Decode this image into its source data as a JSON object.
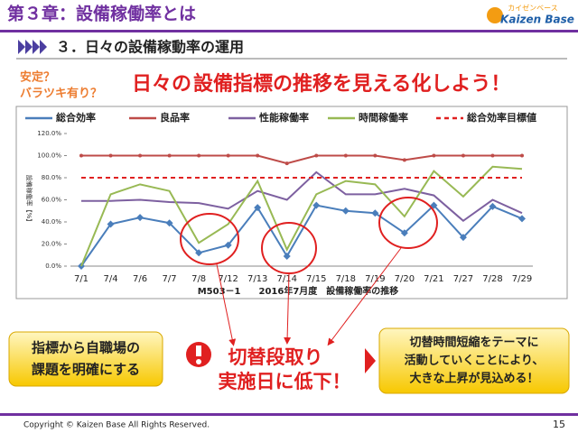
{
  "slide": {
    "title": "第３章：設備稼働率とは",
    "logo_kana": "カイゼンベース",
    "logo": "Kaizen Base",
    "section": "３．日々の設備稼動率の運用",
    "question_lines": [
      "安定？",
      "バラツキ有り？"
    ],
    "headline_parts": [
      "日々の",
      "設備指標の推移を見える化しよう！"
    ],
    "left_box_lines": [
      "指標から自職場の",
      "課題を明確にする"
    ],
    "alert_lines": [
      "切替段取り",
      "実施日に低下！"
    ],
    "right_box_lines": [
      "切替時間短縮をテーマに",
      "活動していくことにより、",
      "大きな上昇が見込める！"
    ],
    "copyright": "Copyright ©  Kaizen Base  All Rights Reserved.",
    "page_number": "15"
  },
  "chart_data": {
    "type": "line",
    "x_title": "M503－1　　2016年7月度　設備稼働率の推移",
    "y_title": "設備稼働率【%】",
    "categories": [
      "7/1",
      "7/4",
      "7/6",
      "7/7",
      "7/8",
      "7/12",
      "7/13",
      "7/14",
      "7/15",
      "7/18",
      "7/19",
      "7/20",
      "7/21",
      "7/27",
      "7/28",
      "7/29"
    ],
    "ylim": [
      0,
      120
    ],
    "yticks": [
      {
        "value": 0,
        "label": "0.0%"
      },
      {
        "value": 20,
        "label": "20.0%"
      },
      {
        "value": 40,
        "label": "40.0%"
      },
      {
        "value": 60,
        "label": "60.0%"
      },
      {
        "value": 80,
        "label": "80.0%"
      },
      {
        "value": 100,
        "label": "100.0%"
      },
      {
        "value": 120,
        "label": "120.0%"
      }
    ],
    "series": [
      {
        "name": "総合効率",
        "color": "#4a7ebb",
        "marker": "diamond",
        "values": [
          0,
          38,
          44,
          39,
          12,
          19,
          53,
          9,
          55,
          50,
          48,
          30,
          55,
          26,
          54,
          43
        ]
      },
      {
        "name": "良品率",
        "color": "#be4b48",
        "marker": "circle",
        "values": [
          100,
          100,
          100,
          100,
          100,
          100,
          100,
          93,
          100,
          100,
          100,
          96,
          100,
          100,
          100,
          100
        ]
      },
      {
        "name": "性能稼働率",
        "color": "#7d60a0",
        "values": [
          59,
          59,
          60,
          58,
          57,
          52,
          68,
          60,
          85,
          65,
          65,
          70,
          64,
          41,
          60,
          48
        ]
      },
      {
        "name": "時間稼働率",
        "color": "#98b954",
        "values": [
          0,
          65,
          74,
          68,
          21,
          38,
          77,
          15,
          65,
          77,
          74,
          45,
          86,
          63,
          90,
          88
        ]
      },
      {
        "name": "総合効率目標値",
        "color": "#e02020",
        "dashed": true,
        "values": [
          80,
          80,
          80,
          80,
          80,
          80,
          80,
          80,
          80,
          80,
          80,
          80,
          80,
          80,
          80,
          80
        ]
      }
    ]
  }
}
